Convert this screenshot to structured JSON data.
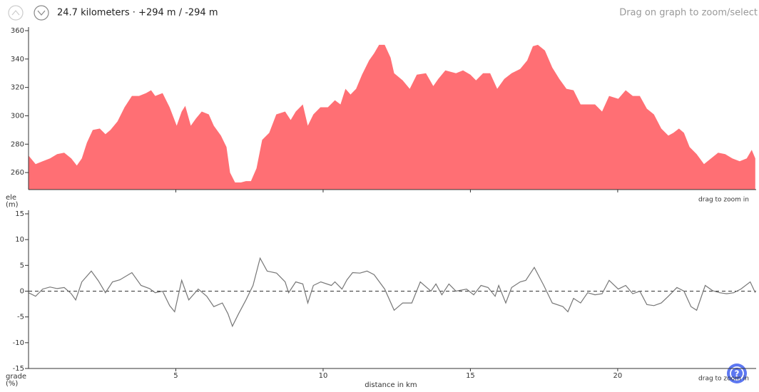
{
  "header": {
    "summary": "24.7 kilometers · +294 m / -294 m",
    "hint": "Drag on graph to zoom/select"
  },
  "help_button": "?",
  "chart_data": [
    {
      "type": "area",
      "ylabel": "ele (m)",
      "zoom_hint": "drag to zoom in",
      "color": "#ff6f74",
      "xlim": [
        0,
        24.7
      ],
      "xticks": [
        5,
        10,
        15,
        20
      ],
      "ylim": [
        248,
        360
      ],
      "yticks": [
        260,
        280,
        300,
        320,
        340,
        360
      ],
      "x": [
        0,
        0.24,
        0.48,
        0.73,
        0.97,
        1.21,
        1.45,
        1.64,
        1.81,
        1.98,
        2.18,
        2.42,
        2.61,
        2.78,
        3.02,
        3.26,
        3.51,
        3.75,
        3.99,
        4.16,
        4.3,
        4.55,
        4.79,
        5.03,
        5.2,
        5.32,
        5.51,
        5.68,
        5.88,
        6.12,
        6.29,
        6.53,
        6.72,
        6.84,
        7.01,
        7.21,
        7.38,
        7.55,
        7.74,
        7.93,
        8.17,
        8.41,
        8.71,
        8.9,
        9.07,
        9.31,
        9.48,
        9.67,
        9.91,
        10.16,
        10.4,
        10.59,
        10.76,
        10.93,
        11.12,
        11.32,
        11.56,
        11.73,
        11.9,
        12.09,
        12.29,
        12.41,
        12.7,
        12.94,
        13.18,
        13.49,
        13.74,
        13.91,
        14.15,
        14.51,
        14.75,
        15.0,
        15.19,
        15.43,
        15.67,
        15.91,
        16.15,
        16.4,
        16.69,
        16.93,
        17.12,
        17.29,
        17.53,
        17.78,
        18.02,
        18.26,
        18.5,
        18.74,
        18.98,
        19.23,
        19.47,
        19.71,
        20.02,
        20.27,
        20.51,
        20.75,
        20.99,
        21.23,
        21.48,
        21.72,
        21.89,
        22.08,
        22.25,
        22.44,
        22.68,
        22.93,
        23.17,
        23.41,
        23.65,
        23.89,
        24.14,
        24.38,
        24.55,
        24.67
      ],
      "values": [
        272,
        266,
        268,
        270,
        273,
        274,
        270,
        265,
        270,
        281,
        290,
        291,
        287,
        290,
        296,
        306,
        314,
        314,
        316,
        318,
        314,
        316,
        306,
        293,
        303,
        307,
        293,
        298,
        303,
        301,
        293,
        286,
        278,
        260,
        253,
        253,
        254,
        254,
        263,
        283,
        288,
        301,
        303,
        297,
        303,
        308,
        293,
        301,
        306,
        306,
        311,
        308,
        319,
        315,
        319,
        329,
        339,
        344,
        350,
        350,
        341,
        330,
        325,
        319,
        329,
        330,
        321,
        326,
        332,
        330,
        332,
        329,
        325,
        330,
        330,
        319,
        326,
        330,
        333,
        339,
        349,
        350,
        346,
        334,
        326,
        319,
        318,
        308,
        308,
        308,
        303,
        314,
        312,
        318,
        314,
        314,
        305,
        301,
        291,
        286,
        288,
        291,
        288,
        278,
        273,
        266,
        270,
        274,
        273,
        270,
        268,
        270,
        276,
        270
      ]
    },
    {
      "type": "line",
      "ylabel": "grade (%)",
      "xlabel": "distance in km",
      "zoom_hint": "drag to zoom in",
      "color": "#777777",
      "reference_line": 0,
      "xlim": [
        0,
        24.7
      ],
      "xticks": [
        5,
        10,
        15,
        20
      ],
      "ylim": [
        -15,
        15
      ],
      "yticks": [
        -15,
        -10,
        -5,
        0,
        5,
        10,
        15
      ],
      "x": [
        0,
        0.24,
        0.48,
        0.73,
        0.97,
        1.21,
        1.45,
        1.6,
        1.81,
        2.13,
        2.37,
        2.61,
        2.85,
        3.1,
        3.51,
        3.82,
        4.11,
        4.3,
        4.55,
        4.79,
        4.96,
        5.2,
        5.44,
        5.76,
        6.05,
        6.29,
        6.58,
        6.77,
        6.92,
        7.13,
        7.38,
        7.62,
        7.86,
        8.1,
        8.42,
        8.71,
        8.83,
        9.07,
        9.31,
        9.48,
        9.67,
        9.92,
        10.28,
        10.4,
        10.64,
        10.81,
        11.0,
        11.25,
        11.49,
        11.73,
        12.09,
        12.41,
        12.7,
        13.01,
        13.3,
        13.66,
        13.83,
        14.03,
        14.27,
        14.51,
        14.87,
        15.11,
        15.36,
        15.6,
        15.84,
        15.96,
        16.2,
        16.4,
        16.69,
        16.88,
        17.17,
        17.49,
        17.78,
        18.14,
        18.31,
        18.5,
        18.74,
        18.98,
        19.23,
        19.47,
        19.71,
        20.02,
        20.27,
        20.51,
        20.75,
        20.99,
        21.23,
        21.48,
        21.72,
        22.01,
        22.25,
        22.49,
        22.68,
        22.97,
        23.22,
        23.46,
        23.7,
        23.94,
        24.18,
        24.5,
        24.67
      ],
      "values": [
        -0.3,
        -1,
        0.4,
        0.8,
        0.5,
        0.7,
        -0.5,
        -1.7,
        1.8,
        3.9,
        2,
        -0.3,
        1.8,
        2.2,
        3.6,
        1.1,
        0.5,
        -0.3,
        0,
        -2.8,
        -4,
        2.1,
        -1.7,
        0.4,
        -1,
        -3,
        -2.3,
        -4.4,
        -6.8,
        -4.4,
        -1.7,
        1.1,
        6.4,
        3.9,
        3.5,
        1.8,
        -0.3,
        1.8,
        1.4,
        -2.3,
        1.1,
        1.8,
        1.1,
        1.8,
        0.4,
        2.2,
        3.6,
        3.5,
        3.9,
        3.2,
        0.4,
        -3.7,
        -2.3,
        -2.3,
        1.8,
        0,
        1.4,
        -0.7,
        1.4,
        0,
        0.4,
        -0.7,
        1.1,
        0.7,
        -1,
        1.1,
        -2.3,
        0.7,
        1.8,
        2.1,
        4.6,
        1.1,
        -2.3,
        -3,
        -4,
        -1.4,
        -2.3,
        -0.3,
        -0.7,
        -0.5,
        2.1,
        0.4,
        1.1,
        -0.5,
        0,
        -2.6,
        -2.8,
        -2.3,
        -1,
        0.7,
        0,
        -3,
        -3.7,
        1.1,
        0.1,
        -0.3,
        -0.5,
        -0.3,
        0.4,
        1.8,
        -0.3
      ]
    }
  ]
}
